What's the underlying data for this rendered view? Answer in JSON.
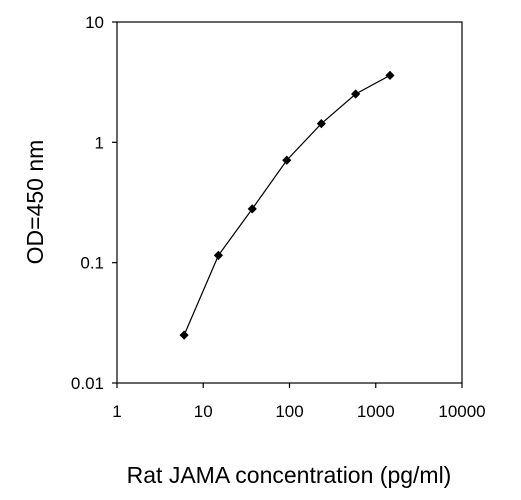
{
  "chart_data": {
    "type": "line",
    "title": "",
    "xlabel": "Rat JAMA concentration (pg/ml)",
    "ylabel": "OD=450 nm",
    "xscale": "log",
    "yscale": "log",
    "xlim": [
      1,
      10000
    ],
    "ylim": [
      0.01,
      10
    ],
    "x_ticks": [
      "1",
      "10",
      "100",
      "1000",
      "10000"
    ],
    "y_ticks": [
      "0.01",
      "0.1",
      "1",
      "10"
    ],
    "grid": false,
    "legend": "none",
    "series": [
      {
        "x": [
          6,
          15,
          37,
          93,
          234,
          585,
          1462
        ],
        "y": [
          0.025,
          0.115,
          0.28,
          0.71,
          1.43,
          2.52,
          3.6
        ],
        "marker": "diamond",
        "color": "#000000"
      }
    ]
  }
}
